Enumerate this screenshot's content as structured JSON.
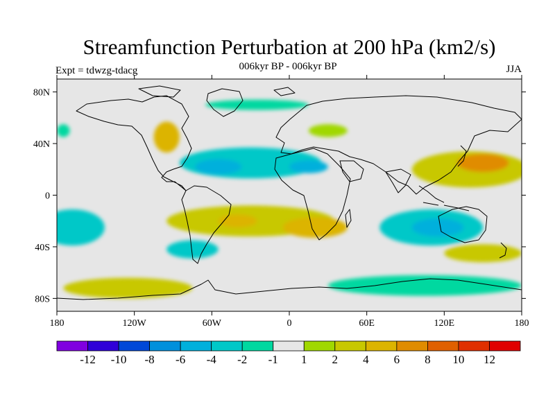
{
  "title": "Streamfunction Perturbation at 200 hPa (km2/s)",
  "subtitle_left": "Expt = tdwzg-tdacg",
  "subtitle_center": "006kyr BP - 006kyr BP",
  "subtitle_right": "JJA",
  "map": {
    "type": "filled-contour",
    "projection": "cylindrical-equidistant",
    "lon_range": [
      -180,
      180
    ],
    "lat_range": [
      -90,
      90
    ],
    "lat_ticks": [
      {
        "value": 80,
        "label": "80N"
      },
      {
        "value": 40,
        "label": "40N"
      },
      {
        "value": 0,
        "label": "0"
      },
      {
        "value": -40,
        "label": "40S"
      },
      {
        "value": -80,
        "label": "80S"
      }
    ],
    "lon_ticks": [
      {
        "value": -180,
        "label": "180"
      },
      {
        "value": -120,
        "label": "120W"
      },
      {
        "value": -60,
        "label": "60W"
      },
      {
        "value": 0,
        "label": "0"
      },
      {
        "value": 60,
        "label": "60E"
      },
      {
        "value": 120,
        "label": "120E"
      },
      {
        "value": 180,
        "label": "180"
      }
    ],
    "background_color": "#e6e6e6",
    "features": [
      {
        "name": "tropical-atlantic-low",
        "lon": -30,
        "lat": 25,
        "rx": 55,
        "ry": 12,
        "color": "#00c8c8"
      },
      {
        "name": "n-atlantic-core",
        "lon": -55,
        "lat": 22,
        "rx": 18,
        "ry": 6,
        "color": "#00b0dc"
      },
      {
        "name": "sahara-core",
        "lon": 15,
        "lat": 22,
        "rx": 15,
        "ry": 5,
        "color": "#00b0dc"
      },
      {
        "name": "w-pacific-south-low",
        "lon": 110,
        "lat": -25,
        "rx": 40,
        "ry": 14,
        "color": "#00c8c8"
      },
      {
        "name": "aus-core",
        "lon": 115,
        "lat": -25,
        "rx": 20,
        "ry": 7,
        "color": "#00b0dc"
      },
      {
        "name": "s-pacific-low",
        "lon": -168,
        "lat": -25,
        "rx": 25,
        "ry": 14,
        "color": "#00c8c8"
      },
      {
        "name": "s-atlantic-high",
        "lon": -30,
        "lat": -20,
        "rx": 65,
        "ry": 12,
        "color": "#c8c800"
      },
      {
        "name": "africa-high-core",
        "lon": 20,
        "lat": -25,
        "rx": 25,
        "ry": 8,
        "color": "#dcb400"
      },
      {
        "name": "s-atlantic-core",
        "lon": -40,
        "lat": -20,
        "rx": 15,
        "ry": 5,
        "color": "#dcb400"
      },
      {
        "name": "w-pacific-north-high",
        "lon": 140,
        "lat": 20,
        "rx": 45,
        "ry": 14,
        "color": "#c8c800"
      },
      {
        "name": "japan-core",
        "lon": 150,
        "lat": 25,
        "rx": 20,
        "ry": 7,
        "color": "#e08c00"
      },
      {
        "name": "s-america-south-low",
        "lon": -75,
        "lat": -42,
        "rx": 20,
        "ry": 7,
        "color": "#00c8c8"
      },
      {
        "name": "antarctic-high",
        "lon": -125,
        "lat": -72,
        "rx": 50,
        "ry": 8,
        "color": "#c8c800"
      },
      {
        "name": "s-indian-south-low",
        "lon": 105,
        "lat": -70,
        "rx": 75,
        "ry": 8,
        "color": "#00d8a0"
      },
      {
        "name": "n-america-high",
        "lon": -95,
        "lat": 45,
        "rx": 10,
        "ry": 12,
        "color": "#dcb400"
      },
      {
        "name": "s-pacific-high",
        "lon": 150,
        "lat": -45,
        "rx": 30,
        "ry": 7,
        "color": "#c8c800"
      },
      {
        "name": "europe-high",
        "lon": 30,
        "lat": 50,
        "rx": 15,
        "ry": 5,
        "color": "#a0d800"
      },
      {
        "name": "n-pacific-high",
        "lon": -175,
        "lat": 50,
        "rx": 5,
        "ry": 5,
        "color": "#00d8a0"
      },
      {
        "name": "n-atlantic-band",
        "lon": -25,
        "lat": 70,
        "rx": 40,
        "ry": 4,
        "color": "#00d8a0"
      }
    ]
  },
  "colorbar": {
    "colors": [
      "#8000e0",
      "#3000d8",
      "#0048d8",
      "#0090dc",
      "#00b0dc",
      "#00c8c8",
      "#00d8a0",
      "#e6e6e6",
      "#a0d800",
      "#c8c800",
      "#dcb400",
      "#e08c00",
      "#e06000",
      "#e03000",
      "#e00000"
    ],
    "labels": [
      "-12",
      "-10",
      "-8",
      "-6",
      "-4",
      "-2",
      "-1",
      "1",
      "2",
      "4",
      "6",
      "8",
      "10",
      "12"
    ]
  }
}
